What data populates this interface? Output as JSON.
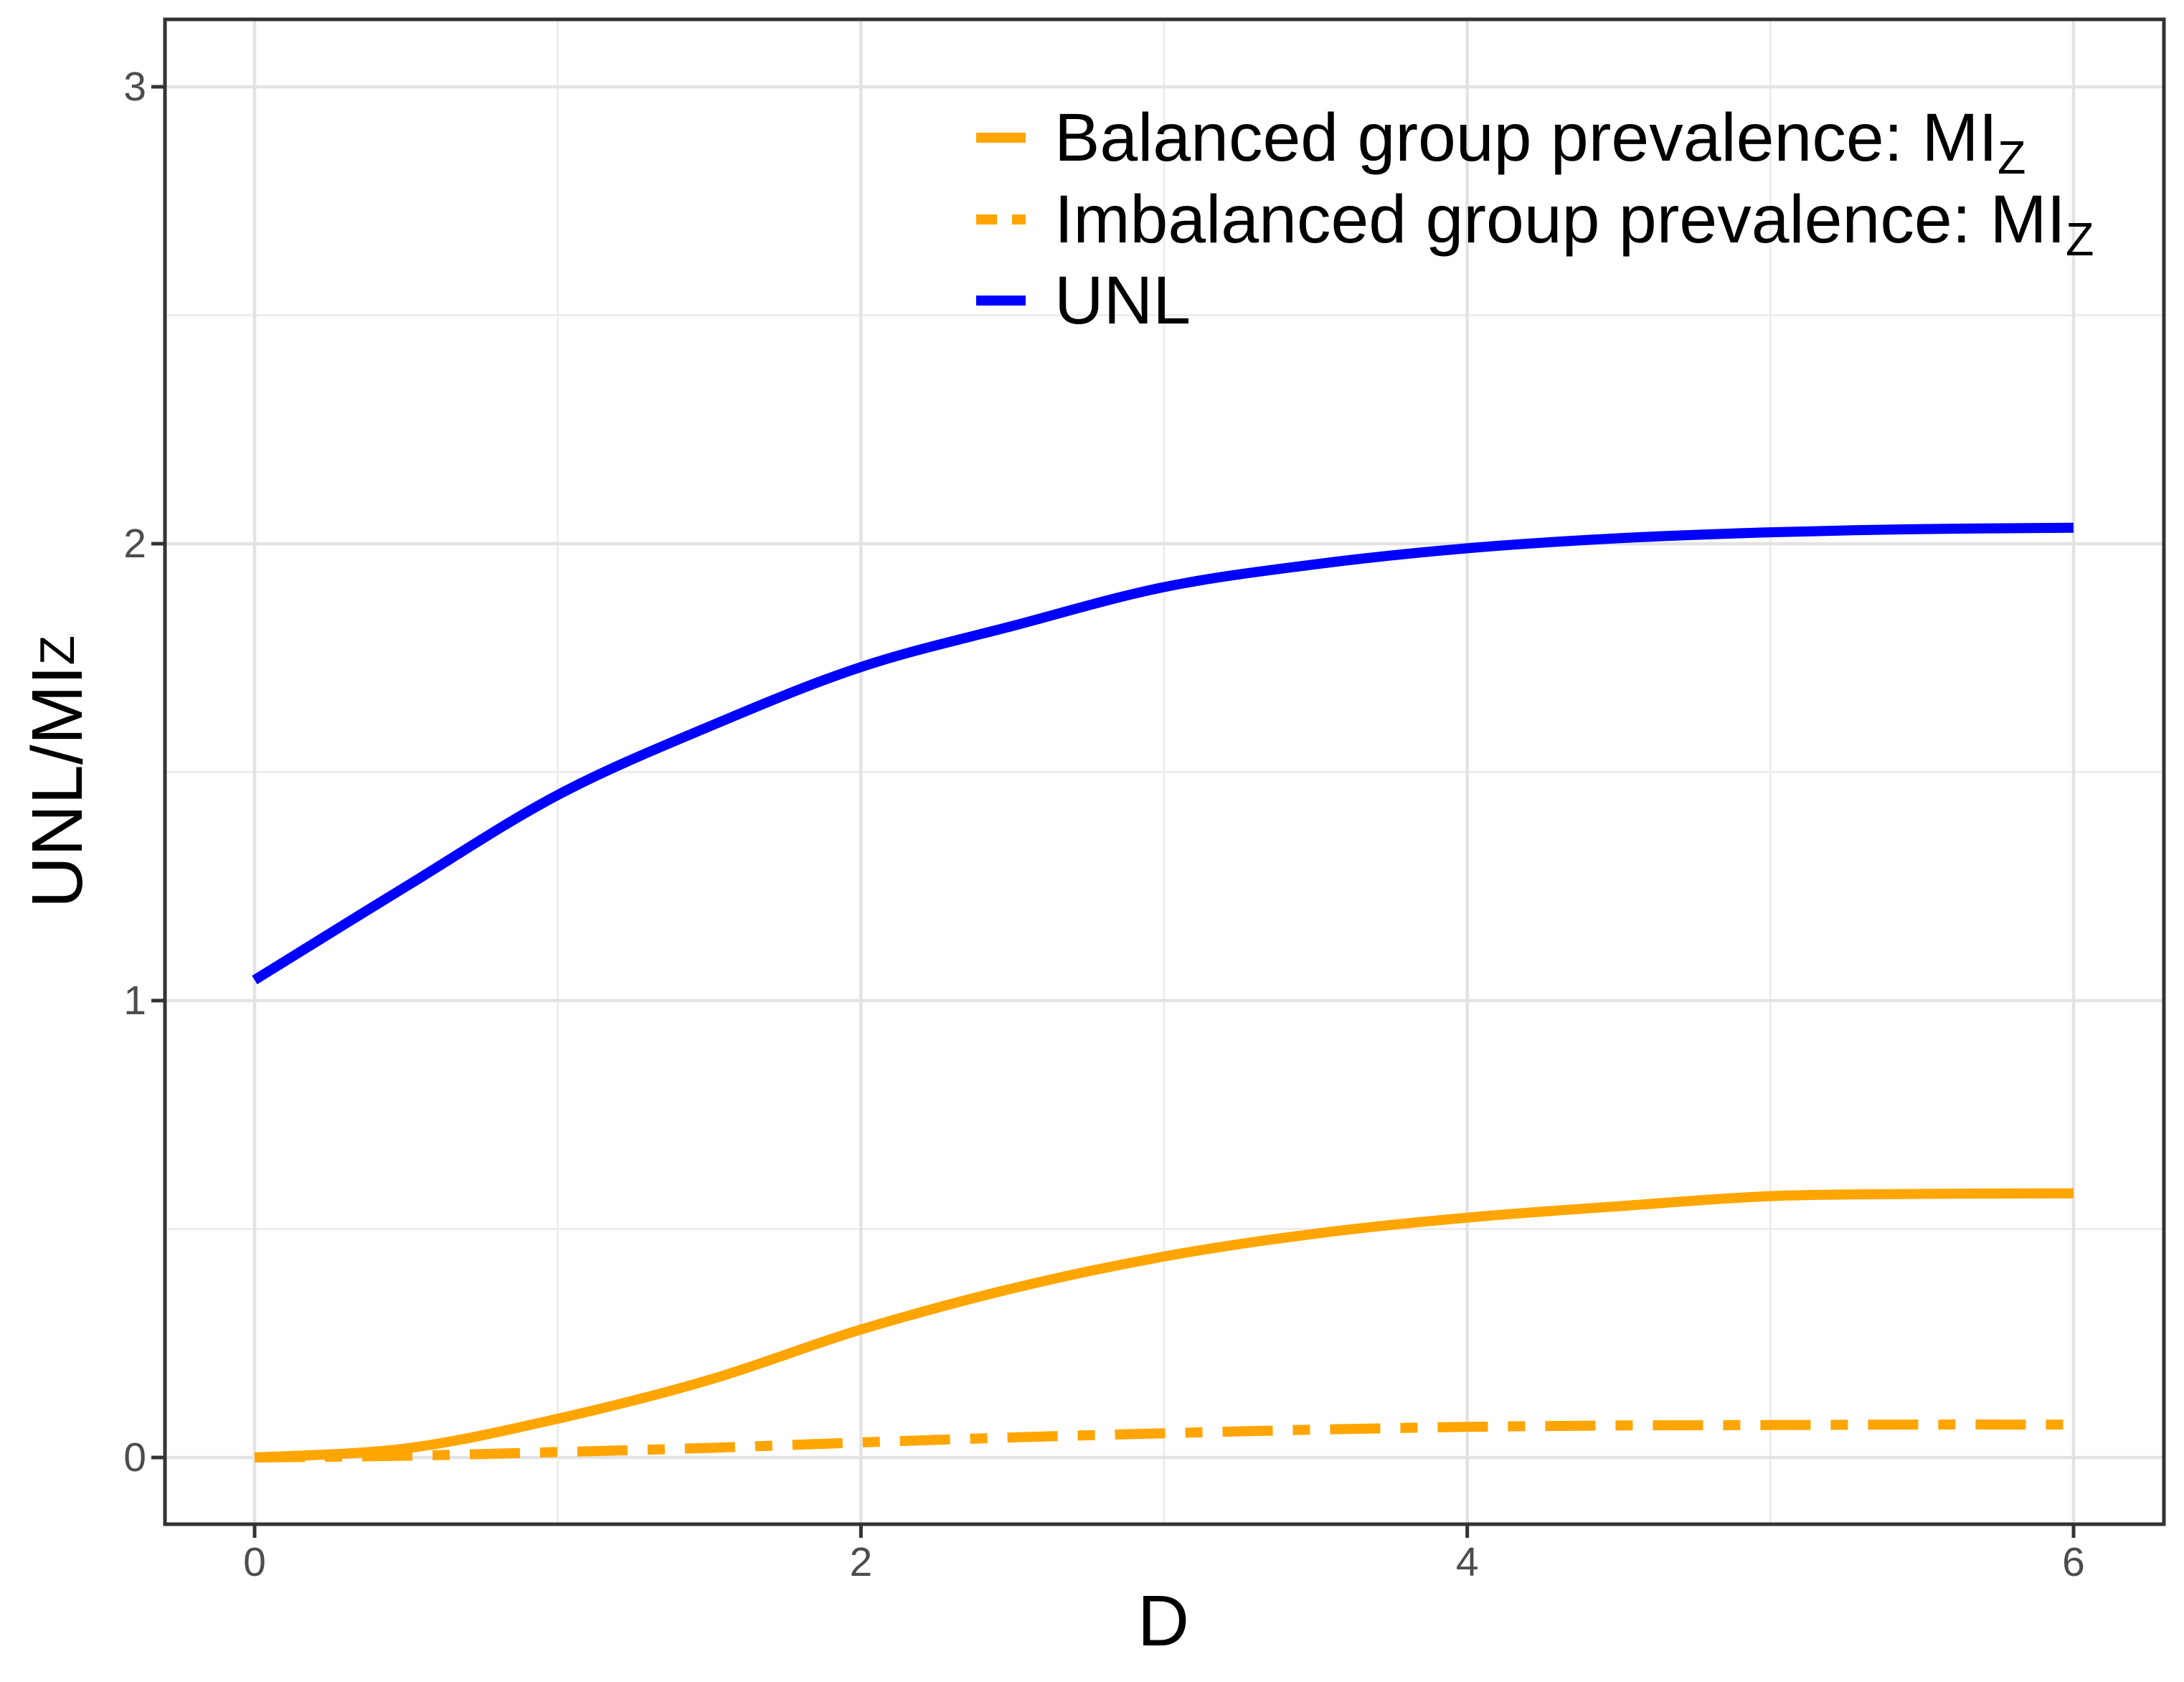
{
  "chart_data": {
    "type": "line",
    "title": "",
    "xlabel": "D",
    "ylabel": "UNL/MI_Z",
    "x": [
      0,
      0.5,
      1,
      1.5,
      2,
      2.5,
      3,
      3.5,
      4,
      4.5,
      5,
      5.5,
      6
    ],
    "series": [
      {
        "name": "Balanced group prevalence: MI_Z",
        "color": "#FFA500",
        "dash": "solid",
        "values": [
          0,
          0.02,
          0.085,
          0.17,
          0.28,
          0.37,
          0.44,
          0.49,
          0.525,
          0.55,
          0.572,
          0.577,
          0.578
        ]
      },
      {
        "name": "Imbalanced group prevalence: MI_Z",
        "color": "#FFA500",
        "dash": "dashdot",
        "values": [
          0,
          0.004,
          0.012,
          0.021,
          0.033,
          0.044,
          0.053,
          0.061,
          0.067,
          0.07,
          0.071,
          0.072,
          0.072
        ]
      },
      {
        "name": "UNL",
        "color": "#0000FF",
        "dash": "solid",
        "values": [
          1.045,
          1.25,
          1.45,
          1.6,
          1.73,
          1.82,
          1.905,
          1.955,
          1.99,
          2.012,
          2.025,
          2.032,
          2.035
        ]
      }
    ],
    "xlim": [
      -0.3,
      6.3
    ],
    "ylim": [
      -0.15,
      3.15
    ],
    "x_ticks": [
      "0",
      "2",
      "4",
      "6"
    ],
    "x_tick_values": [
      0,
      2,
      4,
      6
    ],
    "y_ticks": [
      "0",
      "1",
      "2",
      "3"
    ],
    "y_tick_values": [
      0,
      1,
      2,
      3
    ],
    "x_minor": [
      1,
      3,
      5
    ],
    "y_minor": [
      0.5,
      1.5,
      2.5
    ],
    "grid": true,
    "legend_position": "top-right-inside"
  },
  "xlabel_display": "D",
  "ylabel_display": {
    "main": "UNL/MI",
    "sub": "Z"
  },
  "legend": {
    "entries": [
      {
        "prefix": "Balanced group prevalence: MI",
        "sub": "Z",
        "color": "#FFA500",
        "style": "solid"
      },
      {
        "prefix": "Imbalanced group prevalence: MI",
        "sub": "Z",
        "color": "#FFA500",
        "style": "dashdot"
      },
      {
        "prefix": "UNL",
        "sub": "",
        "color": "#0000FF",
        "style": "solid"
      }
    ]
  },
  "colors": {
    "balanced": "#FFA500",
    "imbalanced": "#FFA500",
    "unl": "#0000FF",
    "grid_major": "#E3E3E3",
    "grid_minor": "#EDEDED",
    "panel_border": "#333333",
    "tick_mark": "#333333",
    "tick_label": "#4D4D4D",
    "text": "#000000",
    "background": "#FFFFFF"
  }
}
